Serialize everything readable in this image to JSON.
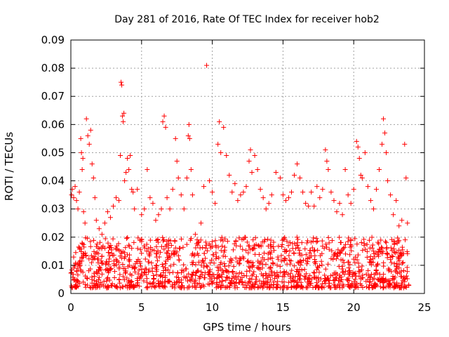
{
  "chart_data": {
    "type": "scatter",
    "title": "Day 281 of 2016, Rate Of TEC Index for receiver hob2",
    "xlabel": "GPS time / hours",
    "ylabel": "ROTI / TECUs",
    "xlim": [
      0,
      25
    ],
    "ylim": [
      0,
      0.09
    ],
    "x_ticks": [
      0,
      5,
      10,
      15,
      20,
      25
    ],
    "x_tick_labels": [
      "0",
      "5",
      "10",
      "15",
      "20",
      "25"
    ],
    "y_ticks": [
      0,
      0.01,
      0.02,
      0.03,
      0.04,
      0.05,
      0.06,
      0.07,
      0.08,
      0.09
    ],
    "y_tick_labels": [
      "0",
      "0.01",
      "0.02",
      "0.03",
      "0.04",
      "0.05",
      "0.06",
      "0.07",
      "0.08",
      "0.09"
    ],
    "grid": true,
    "marker": "+",
    "marker_color": "#ff0000",
    "series": [
      {
        "name": "ROTI",
        "points": [
          [
            0.05,
            0.035
          ],
          [
            0.1,
            0.037
          ],
          [
            0.2,
            0.034
          ],
          [
            0.3,
            0.038
          ],
          [
            0.4,
            0.033
          ],
          [
            0.5,
            0.03
          ],
          [
            0.6,
            0.036
          ],
          [
            0.7,
            0.055
          ],
          [
            0.75,
            0.05
          ],
          [
            0.8,
            0.044
          ],
          [
            0.85,
            0.048
          ],
          [
            0.9,
            0.029
          ],
          [
            1.0,
            0.025
          ],
          [
            1.1,
            0.062
          ],
          [
            1.2,
            0.056
          ],
          [
            1.3,
            0.053
          ],
          [
            1.4,
            0.058
          ],
          [
            1.5,
            0.046
          ],
          [
            1.6,
            0.041
          ],
          [
            1.7,
            0.034
          ],
          [
            1.8,
            0.026
          ],
          [
            2.0,
            0.023
          ],
          [
            2.2,
            0.021
          ],
          [
            2.4,
            0.025
          ],
          [
            2.6,
            0.029
          ],
          [
            2.8,
            0.027
          ],
          [
            3.0,
            0.031
          ],
          [
            3.2,
            0.034
          ],
          [
            3.4,
            0.033
          ],
          [
            3.5,
            0.049
          ],
          [
            3.55,
            0.075
          ],
          [
            3.6,
            0.074
          ],
          [
            3.65,
            0.063
          ],
          [
            3.7,
            0.061
          ],
          [
            3.75,
            0.064
          ],
          [
            3.8,
            0.04
          ],
          [
            3.9,
            0.043
          ],
          [
            4.0,
            0.048
          ],
          [
            4.1,
            0.044
          ],
          [
            4.2,
            0.049
          ],
          [
            4.3,
            0.037
          ],
          [
            4.4,
            0.036
          ],
          [
            4.5,
            0.03
          ],
          [
            4.7,
            0.037
          ],
          [
            5.0,
            0.028
          ],
          [
            5.2,
            0.03
          ],
          [
            5.4,
            0.044
          ],
          [
            5.6,
            0.034
          ],
          [
            5.8,
            0.032
          ],
          [
            6.0,
            0.026
          ],
          [
            6.2,
            0.028
          ],
          [
            6.4,
            0.03
          ],
          [
            6.5,
            0.061
          ],
          [
            6.6,
            0.063
          ],
          [
            6.7,
            0.059
          ],
          [
            6.8,
            0.034
          ],
          [
            7.0,
            0.03
          ],
          [
            7.2,
            0.037
          ],
          [
            7.4,
            0.055
          ],
          [
            7.5,
            0.047
          ],
          [
            7.6,
            0.041
          ],
          [
            7.8,
            0.035
          ],
          [
            8.0,
            0.03
          ],
          [
            8.2,
            0.041
          ],
          [
            8.3,
            0.056
          ],
          [
            8.35,
            0.06
          ],
          [
            8.4,
            0.055
          ],
          [
            8.5,
            0.044
          ],
          [
            8.6,
            0.035
          ],
          [
            8.8,
            0.021
          ],
          [
            9.0,
            0.018
          ],
          [
            9.2,
            0.025
          ],
          [
            9.4,
            0.038
          ],
          [
            9.6,
            0.081
          ],
          [
            9.8,
            0.04
          ],
          [
            10.0,
            0.036
          ],
          [
            10.2,
            0.032
          ],
          [
            10.4,
            0.053
          ],
          [
            10.5,
            0.061
          ],
          [
            10.6,
            0.05
          ],
          [
            10.8,
            0.059
          ],
          [
            11.0,
            0.049
          ],
          [
            11.2,
            0.042
          ],
          [
            11.4,
            0.036
          ],
          [
            11.6,
            0.039
          ],
          [
            11.8,
            0.033
          ],
          [
            12.0,
            0.035
          ],
          [
            12.2,
            0.036
          ],
          [
            12.4,
            0.038
          ],
          [
            12.6,
            0.047
          ],
          [
            12.7,
            0.051
          ],
          [
            12.8,
            0.043
          ],
          [
            13.0,
            0.049
          ],
          [
            13.2,
            0.044
          ],
          [
            13.4,
            0.037
          ],
          [
            13.6,
            0.034
          ],
          [
            13.8,
            0.03
          ],
          [
            14.0,
            0.032
          ],
          [
            14.2,
            0.035
          ],
          [
            14.5,
            0.043
          ],
          [
            14.8,
            0.041
          ],
          [
            15.0,
            0.035
          ],
          [
            15.2,
            0.033
          ],
          [
            15.4,
            0.034
          ],
          [
            15.6,
            0.036
          ],
          [
            15.8,
            0.042
          ],
          [
            16.0,
            0.046
          ],
          [
            16.2,
            0.041
          ],
          [
            16.4,
            0.036
          ],
          [
            16.6,
            0.032
          ],
          [
            16.8,
            0.031
          ],
          [
            17.0,
            0.036
          ],
          [
            17.2,
            0.031
          ],
          [
            17.4,
            0.038
          ],
          [
            17.6,
            0.034
          ],
          [
            17.8,
            0.037
          ],
          [
            18.0,
            0.051
          ],
          [
            18.1,
            0.047
          ],
          [
            18.2,
            0.044
          ],
          [
            18.4,
            0.036
          ],
          [
            18.6,
            0.033
          ],
          [
            18.8,
            0.029
          ],
          [
            19.0,
            0.032
          ],
          [
            19.2,
            0.028
          ],
          [
            19.4,
            0.044
          ],
          [
            19.6,
            0.035
          ],
          [
            19.8,
            0.032
          ],
          [
            20.0,
            0.037
          ],
          [
            20.2,
            0.054
          ],
          [
            20.3,
            0.052
          ],
          [
            20.4,
            0.048
          ],
          [
            20.5,
            0.042
          ],
          [
            20.6,
            0.041
          ],
          [
            20.8,
            0.05
          ],
          [
            21.0,
            0.038
          ],
          [
            21.2,
            0.033
          ],
          [
            21.4,
            0.03
          ],
          [
            21.6,
            0.037
          ],
          [
            21.8,
            0.044
          ],
          [
            22.0,
            0.053
          ],
          [
            22.1,
            0.062
          ],
          [
            22.2,
            0.057
          ],
          [
            22.3,
            0.05
          ],
          [
            22.4,
            0.04
          ],
          [
            22.6,
            0.035
          ],
          [
            22.8,
            0.028
          ],
          [
            23.0,
            0.033
          ],
          [
            23.2,
            0.024
          ],
          [
            23.4,
            0.026
          ],
          [
            23.6,
            0.053
          ],
          [
            23.7,
            0.041
          ],
          [
            23.8,
            0.025
          ]
        ],
        "baseline_band": {
          "x_start": 0,
          "x_end": 23.9,
          "y_min": 0.002,
          "y_max": 0.02,
          "density_per_hour": 60
        }
      }
    ]
  }
}
